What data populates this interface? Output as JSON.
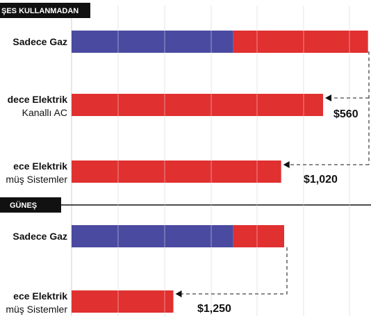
{
  "colors": {
    "gas": "#4a4aa0",
    "electric": "#e03030",
    "grid": "#cfcfcf",
    "section_bg": "#111111",
    "connector": "#444444"
  },
  "chart_data": {
    "type": "bar",
    "orientation": "horizontal",
    "stacked": true,
    "xlim": [
      0,
      100
    ],
    "grid": true,
    "sections": [
      {
        "label": "ŞES KULLANMADAN",
        "bars": [
          {
            "label": "Sadece Gaz",
            "sublabel": "",
            "gas": 54,
            "electric": 45,
            "value_label": ""
          },
          {
            "label": "dece Elektrik",
            "sublabel": "Kanallı AC",
            "gas": 0,
            "electric": 84,
            "value_label": "$560"
          },
          {
            "label": "ece Elektrik",
            "sublabel": "müş Sistemler",
            "gas": 0,
            "electric": 70,
            "value_label": "$1,020"
          }
        ]
      },
      {
        "label": "GÜNEŞ",
        "bars": [
          {
            "label": "Sadece Gaz",
            "sublabel": "",
            "gas": 54,
            "electric": 17,
            "value_label": ""
          },
          {
            "label": "ece Elektrik",
            "sublabel": "müş Sistemler",
            "gas": 0,
            "electric": 34,
            "value_label": "$1,250"
          }
        ]
      }
    ]
  }
}
